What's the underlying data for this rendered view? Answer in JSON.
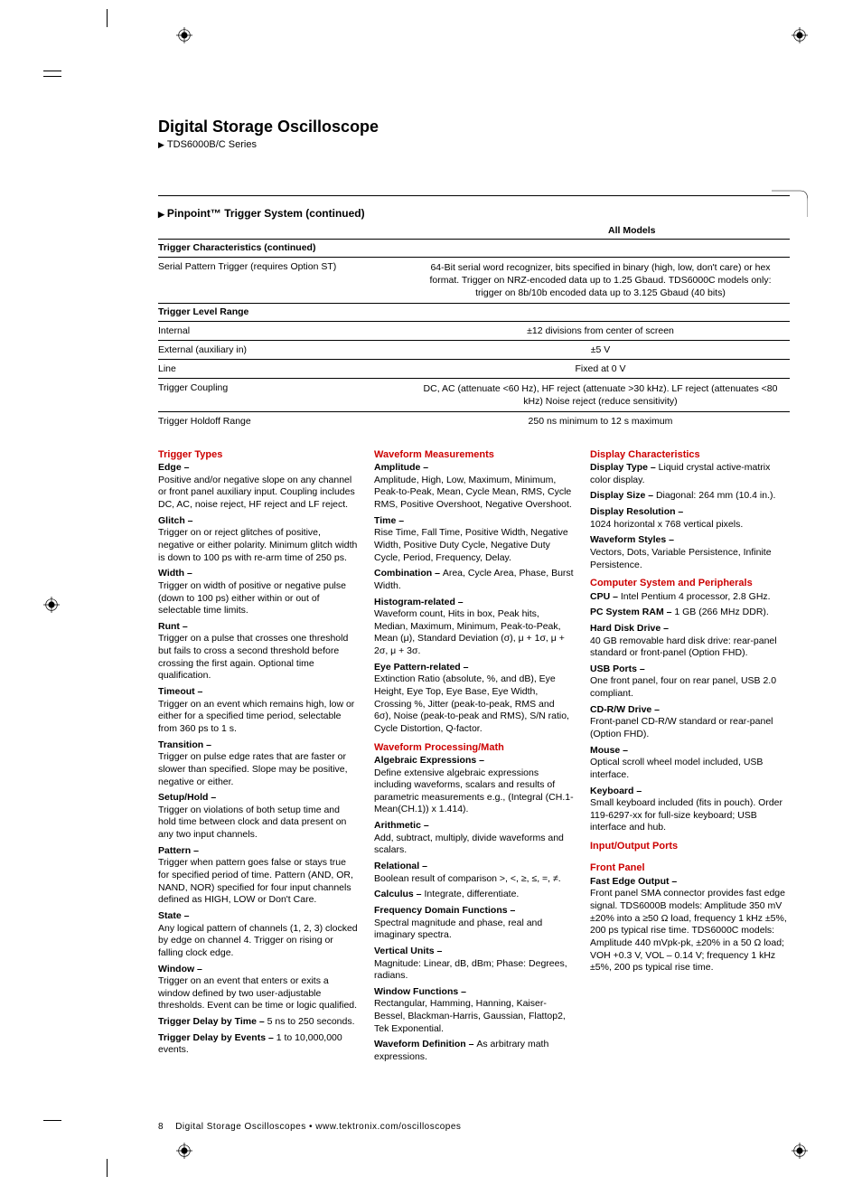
{
  "title": "Digital Storage Oscilloscope",
  "series": "TDS6000B/C Series",
  "section_header": "Pinpoint™ Trigger System (continued)",
  "all_models": "All Models",
  "table": {
    "row_trigger_char": "Trigger Characteristics (continued)",
    "rows": [
      {
        "label": "Serial Pattern Trigger (requires Option ST)",
        "value": "64-Bit serial word recognizer, bits specified in binary (high, low, don't care) or hex format. Trigger on NRZ-encoded data up to 1.25 Gbaud. TDS6000C models only: trigger on 8b/10b encoded data up to 3.125 Gbaud (40 bits)"
      }
    ],
    "row_trigger_level": "Trigger Level Range",
    "level_rows": [
      {
        "label": "Internal",
        "value": "±12 divisions from center of screen"
      },
      {
        "label": "External (auxiliary in)",
        "value": "±5 V"
      },
      {
        "label": "Line",
        "value": "Fixed at 0 V"
      },
      {
        "label": "Trigger Coupling",
        "value": "DC, AC (attenuate <60 Hz), HF reject (attenuate >30 kHz). LF reject (attenuates <80 kHz) Noise reject (reduce sensitivity)"
      },
      {
        "label": "Trigger Holdoff Range",
        "value": "250 ns minimum to 12 s maximum"
      }
    ]
  },
  "col1": {
    "h1": "Trigger Types",
    "items": [
      {
        "label": "Edge –",
        "text": "Positive and/or negative slope on any channel or front panel auxiliary input. Coupling includes DC, AC, noise reject, HF reject and LF reject."
      },
      {
        "label": "Glitch –",
        "text": "Trigger on or reject glitches of positive, negative or either polarity. Minimum glitch width is down to 100 ps with re-arm time of 250 ps."
      },
      {
        "label": "Width –",
        "text": "Trigger on width of positive or negative pulse (down to 100 ps) either within or out of selectable time limits."
      },
      {
        "label": "Runt –",
        "text": "Trigger on a pulse that crosses one threshold but fails to cross a second threshold before crossing the first again. Optional time qualification."
      },
      {
        "label": "Timeout –",
        "text": "Trigger on an event which remains high, low or either for a specified time period, selectable from 360 ps to 1 s."
      },
      {
        "label": "Transition –",
        "text": "Trigger on pulse edge rates that are faster or slower than specified. Slope may be positive, negative or either."
      },
      {
        "label": "Setup/Hold –",
        "text": "Trigger on violations of both setup time and hold time between clock and data present on any two input channels."
      },
      {
        "label": "Pattern –",
        "text": "Trigger when pattern goes false or stays true for specified period of time. Pattern (AND, OR, NAND, NOR) specified for four input channels defined as HIGH, LOW or Don't Care."
      },
      {
        "label": "State –",
        "text": "Any logical pattern of channels (1, 2, 3) clocked by edge on channel 4. Trigger on rising or falling clock edge."
      },
      {
        "label": "Window –",
        "text": "Trigger on an event that enters or exits a window defined by two user-adjustable thresholds. Event can be time or logic qualified."
      }
    ],
    "delay_time": {
      "label": "Trigger Delay by Time – ",
      "text": "5 ns to 250 seconds."
    },
    "delay_evt": {
      "label": "Trigger Delay by Events – ",
      "text": "1 to 10,000,000 events."
    }
  },
  "col2": {
    "h1": "Waveform Measurements",
    "items1": [
      {
        "label": "Amplitude –",
        "text": "Amplitude, High, Low, Maximum, Minimum, Peak-to-Peak, Mean, Cycle Mean, RMS, Cycle RMS, Positive Overshoot, Negative Overshoot."
      },
      {
        "label": "Time –",
        "text": "Rise Time, Fall Time, Positive Width, Negative Width, Positive Duty Cycle, Negative Duty Cycle, Period, Frequency, Delay."
      }
    ],
    "combo": {
      "label": "Combination – ",
      "text": "Area, Cycle Area, Phase, Burst Width."
    },
    "items2": [
      {
        "label": "Histogram-related –",
        "text": "Waveform count, Hits in box, Peak hits, Median, Maximum, Minimum, Peak-to-Peak, Mean (μ), Standard Deviation (σ), μ + 1σ, μ + 2σ, μ + 3σ."
      },
      {
        "label": "Eye Pattern-related –",
        "text": "Extinction Ratio (absolute, %, and dB), Eye Height, Eye Top, Eye Base, Eye Width, Crossing %, Jitter (peak-to-peak, RMS and 6σ), Noise (peak-to-peak and RMS), S/N ratio, Cycle Distortion, Q-factor."
      }
    ],
    "h2": "Waveform Processing/Math",
    "items3": [
      {
        "label": "Algebraic Expressions –",
        "text": "Define extensive algebraic expressions including waveforms, scalars and results of parametric measurements e.g., (Integral (CH.1-Mean(CH.1)) x 1.414)."
      },
      {
        "label": "Arithmetic –",
        "text": "Add, subtract, multiply, divide waveforms and scalars."
      },
      {
        "label": "Relational –",
        "text": "Boolean result of comparison >, <, ≥, ≤, =, ≠."
      }
    ],
    "calc": {
      "label": "Calculus – ",
      "text": "Integrate, differentiate."
    },
    "items4": [
      {
        "label": "Frequency Domain Functions –",
        "text": "Spectral magnitude and phase, real and imaginary spectra."
      },
      {
        "label": "Vertical Units –",
        "text": "Magnitude: Linear, dB, dBm; Phase: Degrees, radians."
      },
      {
        "label": "Window Functions –",
        "text": "Rectangular, Hamming, Hanning, Kaiser-Bessel, Blackman-Harris, Gaussian, Flattop2, Tek Exponential."
      }
    ],
    "wdef": {
      "label": "Waveform Definition – ",
      "text": "As arbitrary math expressions."
    }
  },
  "col3": {
    "h1": "Display Characteristics",
    "disp_type": {
      "label": "Display Type – ",
      "text": "Liquid crystal active-matrix color display."
    },
    "disp_size": {
      "label": "Display Size – ",
      "text": "Diagonal: 264 mm (10.4 in.)."
    },
    "items1": [
      {
        "label": "Display Resolution –",
        "text": "1024 horizontal x 768 vertical pixels."
      },
      {
        "label": "Waveform Styles –",
        "text": "Vectors, Dots, Variable Persistence, Infinite Persistence."
      }
    ],
    "h2": "Computer System and Peripherals",
    "cpu": {
      "label": "CPU – ",
      "text": "Intel Pentium 4 processor, 2.8 GHz."
    },
    "ram": {
      "label": "PC System RAM – ",
      "text": "1 GB (266 MHz DDR)."
    },
    "items2": [
      {
        "label": "Hard Disk Drive –",
        "text": "40 GB removable hard disk drive: rear-panel standard or front-panel (Option FHD)."
      },
      {
        "label": "USB Ports –",
        "text": "One front panel, four on rear panel, USB 2.0 compliant."
      },
      {
        "label": "CD-R/W Drive –",
        "text": "Front-panel CD-R/W standard or rear-panel (Option FHD)."
      },
      {
        "label": "Mouse –",
        "text": "Optical scroll wheel model included, USB interface."
      },
      {
        "label": "Keyboard –",
        "text": "Small keyboard included (fits in pouch). Order 119-6297-xx for full-size keyboard; USB interface and hub."
      }
    ],
    "h3": "Input/Output Ports",
    "h4": "Front Panel",
    "items3": [
      {
        "label": "Fast Edge Output –",
        "text": "Front panel SMA connector provides fast edge signal. TDS6000B models: Amplitude 350 mV ±20% into a ≥50 Ω load, frequency 1 kHz ±5%, 200 ps typical rise time. TDS6000C models: Amplitude 440 mVpk-pk, ±20% in a 50 Ω load; VOH +0.3 V, VOL – 0.14 V; frequency 1 kHz ±5%, 200 ps typical rise time."
      }
    ]
  },
  "footer_page": "8",
  "footer_text": "Digital Storage Oscilloscopes • www.tektronix.com/oscilloscopes"
}
